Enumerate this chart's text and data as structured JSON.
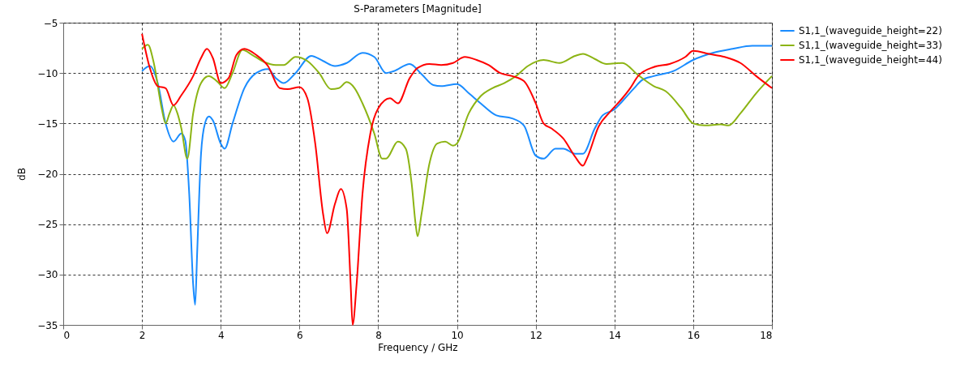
{
  "chart_data": {
    "type": "line",
    "title": "S-Parameters [Magnitude]",
    "xlabel": "Frequency / GHz",
    "ylabel": "dB",
    "xlim": [
      0,
      18
    ],
    "xticks": [
      0,
      2,
      4,
      6,
      8,
      10,
      12,
      14,
      16,
      18
    ],
    "ylim": [
      -35,
      -5
    ],
    "yticks": [
      -35,
      -30,
      -25,
      -20,
      -15,
      -10,
      -5
    ],
    "grid": true,
    "legend": "top right",
    "line_style": "solid",
    "marker": "none",
    "series": [
      {
        "name": "S1,1_(waveguide_height=22)",
        "color": "#1a8cff",
        "x": [
          2,
          2.2,
          2.4,
          2.6,
          2.8,
          3.0,
          3.1,
          3.2,
          3.3,
          3.35,
          3.4,
          3.5,
          3.6,
          3.7,
          3.8,
          4.0,
          4.1,
          4.3,
          4.6,
          4.9,
          5.2,
          5.4,
          5.6,
          5.9,
          6.3,
          6.6,
          6.9,
          7.2,
          7.6,
          7.9,
          8.2,
          8.4,
          8.8,
          9.1,
          9.4,
          9.6,
          10.0,
          10.3,
          10.6,
          11.0,
          11.4,
          11.7,
          12.0,
          12.2,
          12.5,
          12.7,
          13.0,
          13.2,
          13.5,
          13.7,
          14.0,
          14.2,
          14.5,
          14.7,
          15.0,
          15.5,
          16.0,
          16.5,
          17.0,
          17.5,
          18.0
        ],
        "values": [
          -9.8,
          -9.3,
          -11,
          -15,
          -16.8,
          -16,
          -16.7,
          -22,
          -31,
          -33,
          -28,
          -18,
          -15,
          -14.3,
          -14.7,
          -17,
          -17.5,
          -15,
          -11.5,
          -10,
          -9.6,
          -10.5,
          -11,
          -10,
          -8.3,
          -8.8,
          -9.3,
          -9,
          -8,
          -8.4,
          -10,
          -9.8,
          -9.1,
          -10.1,
          -11.2,
          -11.3,
          -11.1,
          -12,
          -13,
          -14.2,
          -14.5,
          -15.2,
          -18.2,
          -18.5,
          -17.5,
          -17.5,
          -18,
          -18,
          -15.5,
          -14.2,
          -13.6,
          -12.8,
          -11.5,
          -10.7,
          -10.3,
          -9.8,
          -8.7,
          -8,
          -7.6,
          -7.3,
          -7.3
        ]
      },
      {
        "name": "S1,1_(waveguide_height=33)",
        "color": "#8cb414",
        "x": [
          2,
          2.15,
          2.3,
          2.5,
          2.6,
          2.7,
          2.8,
          2.9,
          3.0,
          3.15,
          3.3,
          3.5,
          3.7,
          3.9,
          4.1,
          4.3,
          4.55,
          4.8,
          5.1,
          5.4,
          5.6,
          5.9,
          6.2,
          6.5,
          6.8,
          7.0,
          7.2,
          7.4,
          7.6,
          7.9,
          8.1,
          8.2,
          8.5,
          8.7,
          8.85,
          8.95,
          9.0,
          9.1,
          9.3,
          9.5,
          9.7,
          9.9,
          10.0,
          10.3,
          10.6,
          10.9,
          11.2,
          11.5,
          11.8,
          12.2,
          12.6,
          13.0,
          13.2,
          13.5,
          13.8,
          14.2,
          14.6,
          15.0,
          15.3,
          15.7,
          16.0,
          16.3,
          16.7,
          16.9,
          17.2,
          17.6,
          18.0
        ],
        "values": [
          -7.6,
          -7.2,
          -9,
          -13.5,
          -15,
          -14,
          -13.2,
          -14,
          -15.5,
          -18.5,
          -14,
          -11,
          -10.3,
          -10.8,
          -11.5,
          -10,
          -7.7,
          -8.2,
          -8.9,
          -9.2,
          -9.2,
          -8.4,
          -8.8,
          -10,
          -11.6,
          -11.5,
          -10.9,
          -11.5,
          -13,
          -16,
          -18.5,
          -18.5,
          -16.8,
          -17.5,
          -21,
          -25,
          -26.2,
          -24,
          -19,
          -17,
          -16.8,
          -17.2,
          -17,
          -14,
          -12.3,
          -11.5,
          -11,
          -10.3,
          -9.3,
          -8.7,
          -9,
          -8.3,
          -8.1,
          -8.6,
          -9.1,
          -9,
          -10.2,
          -11.3,
          -11.8,
          -13.5,
          -15,
          -15.2,
          -15.1,
          -15.2,
          -14,
          -12,
          -10.3
        ]
      },
      {
        "name": "S1,1_(waveguide_height=44)",
        "color": "#ff0000",
        "x": [
          2,
          2.2,
          2.4,
          2.6,
          2.8,
          3.0,
          3.3,
          3.5,
          3.65,
          3.8,
          4.0,
          4.2,
          4.4,
          4.6,
          4.9,
          5.2,
          5.5,
          5.7,
          6.0,
          6.2,
          6.4,
          6.6,
          6.7,
          6.9,
          7.05,
          7.2,
          7.3,
          7.35,
          7.45,
          7.6,
          7.8,
          8.0,
          8.3,
          8.5,
          8.8,
          9.0,
          9.3,
          9.6,
          9.9,
          10.2,
          10.5,
          10.8,
          11.1,
          11.4,
          11.7,
          12.0,
          12.2,
          12.4,
          12.7,
          13.0,
          13.2,
          13.3,
          13.6,
          13.9,
          14.2,
          14.4,
          14.6,
          15.0,
          15.4,
          15.8,
          16.0,
          16.4,
          16.8,
          17.2,
          17.6,
          18.0
        ],
        "values": [
          -6.1,
          -9.5,
          -11.3,
          -11.5,
          -13.2,
          -12.2,
          -10.3,
          -8.5,
          -7.6,
          -8.5,
          -11,
          -10.5,
          -8.2,
          -7.6,
          -8.2,
          -9.3,
          -11.5,
          -11.6,
          -11.4,
          -12.5,
          -17,
          -24,
          -25.9,
          -23,
          -21.5,
          -23.5,
          -31,
          -35,
          -31,
          -22,
          -16,
          -13.5,
          -12.5,
          -13,
          -10.5,
          -9.5,
          -9.1,
          -9.2,
          -9,
          -8.4,
          -8.7,
          -9.2,
          -10,
          -10.3,
          -10.8,
          -13,
          -15,
          -15.5,
          -16.5,
          -18.3,
          -19.2,
          -18.5,
          -15.3,
          -13.8,
          -12.5,
          -11.5,
          -10.3,
          -9.4,
          -9.1,
          -8.4,
          -7.8,
          -8.1,
          -8.4,
          -9,
          -10.3,
          -11.5
        ]
      }
    ]
  }
}
